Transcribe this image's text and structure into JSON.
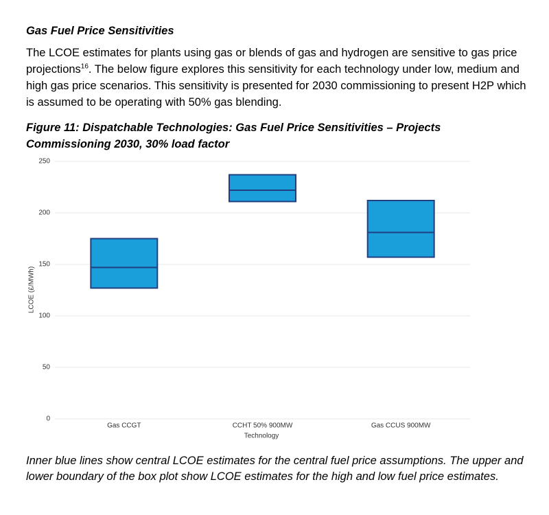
{
  "heading": "Gas Fuel Price Sensitivities",
  "paragraph": {
    "text_before": "The LCOE estimates for plants using gas or blends of gas and hydrogen are sensitive to gas price projections",
    "footnote": "16",
    "text_after": ". The below figure explores this sensitivity for each technology under low, medium and high gas price scenarios. This sensitivity is presented for 2030 commissioning to present H2P which is assumed to be operating with 50% gas blending."
  },
  "figure_caption": "Figure 11: Dispatchable Technologies: Gas Fuel Price Sensitivities – Projects Commissioning 2030, 30% load factor",
  "chart_data": {
    "type": "box",
    "categories": [
      "Gas CCGT",
      "CCHT 50% 900MW",
      "Gas CCUS 900MW"
    ],
    "low": [
      127,
      211,
      157
    ],
    "central": [
      147,
      222,
      181
    ],
    "high": [
      175,
      237,
      212
    ],
    "color": "#1a9fdb",
    "edge_color": "#1f3f80",
    "x_label": "Technology",
    "y_label": "LCOE (£/MWh)",
    "ylim": [
      0,
      250
    ],
    "yticks": [
      0,
      50,
      100,
      150,
      200,
      250
    ],
    "grid": true
  },
  "note": "Inner blue lines show central LCOE estimates for the central fuel price assumptions. The upper and lower boundary of the box plot show LCOE estimates for the high and low fuel price estimates."
}
